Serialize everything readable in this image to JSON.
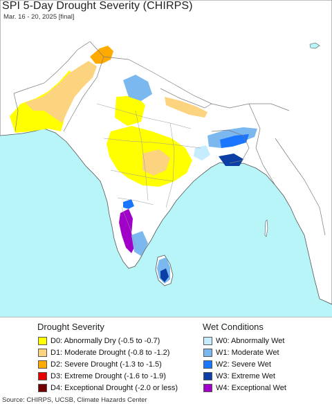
{
  "map": {
    "title": "SPI 5-Day Drought Severity (CHIRPS)",
    "subtitle": "Mar. 16 - 20, 2025 [final]",
    "colors": {
      "ocean": "#b7f5f9",
      "land": "#ffffff",
      "border": "#7a7a7a",
      "coast": "#555555"
    }
  },
  "legend": {
    "drought_heading": "Drought Severity",
    "wet_heading": "Wet Conditions",
    "drought_items": [
      {
        "label": "D0: Abnormally Dry (-0.5 to -0.7)",
        "color": "#ffff00"
      },
      {
        "label": "D1: Moderate Drought (-0.8 to -1.2)",
        "color": "#fcd37f"
      },
      {
        "label": "D2: Severe Drought (-1.3 to -1.5)",
        "color": "#ffaa00"
      },
      {
        "label": "D3: Extreme Drought (-1.6 to -1.9)",
        "color": "#e60000"
      },
      {
        "label": "D4: Exceptional Drought (-2.0 or less)",
        "color": "#730000"
      }
    ],
    "wet_items": [
      {
        "label": "W0: Abnormally Wet",
        "color": "#c6ecff"
      },
      {
        "label": "W1: Moderate Wet",
        "color": "#7cb8f0"
      },
      {
        "label": "W2: Severe Wet",
        "color": "#1a75ff"
      },
      {
        "label": "W3: Extreme Wet",
        "color": "#0b3fa5"
      },
      {
        "label": "W4: Exceptional Wet",
        "color": "#a000c8"
      }
    ]
  },
  "source": "Source: CHIRPS, UCSB, Climate Hazards Center"
}
